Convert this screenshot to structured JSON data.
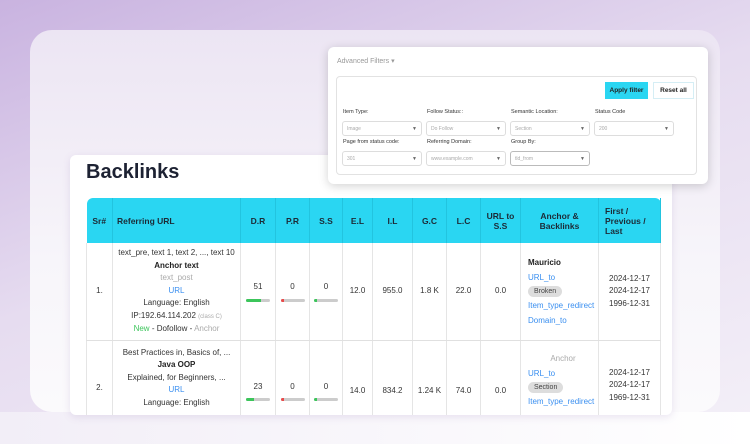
{
  "page": {
    "title": "Backlinks"
  },
  "filters": {
    "title": "Advanced Filters",
    "apply": "Apply filter",
    "reset": "Reset all",
    "fields": [
      {
        "label": "Item Type:",
        "value": "Image"
      },
      {
        "label": "Follow Status::",
        "value": "Do Follow"
      },
      {
        "label": "Semantic Location:",
        "value": "Section"
      },
      {
        "label": "Status Code",
        "value": "200"
      },
      {
        "label": "Page from status code:",
        "value": "301"
      },
      {
        "label": "Referring Domain:",
        "value": "www.example.com"
      },
      {
        "label": "Group By:",
        "value": "tld_from"
      }
    ]
  },
  "table": {
    "headers": [
      "Sr#",
      "Referring URL",
      "D.R",
      "P.R",
      "S.S",
      "E.L",
      "I.L",
      "G.C",
      "L.C",
      "URL to S.S",
      "Anchor & Backlinks",
      "First / Previous / Last"
    ],
    "rows": [
      {
        "sr": "1.",
        "pre": "text_pre, text 1, text 2, ..., text 10",
        "anchor": "Anchor text",
        "post": "text_post",
        "url": "URL",
        "lang": "Language: English",
        "ip": "IP:192.64.114.202",
        "ipclass": "(class C)",
        "tag_new": "New",
        "tag_follow": "Dofollow",
        "tag_anchor": "Anchor",
        "dr": "51",
        "dr_pct": 51,
        "pr": "0",
        "ss": "0",
        "el": "12.0",
        "il": "955.0",
        "gc": "1.8 K",
        "lc": "22.0",
        "urlss": "0.0",
        "a_name": "Mauricio",
        "a_url": "URL_to",
        "a_badge": "Broken",
        "a_type": "Item_type_redirect",
        "a_domain": "Domain_to",
        "first": "2024-12-17",
        "prev": "2024-12-17",
        "last": "1996-12-31"
      },
      {
        "sr": "2.",
        "pre": "Best Practices in, Basics of, ...",
        "anchor": "Java OOP",
        "post": "Explained, for Beginners, ...",
        "url": "URL",
        "lang": "Language: English",
        "dr": "23",
        "dr_pct": 23,
        "pr": "0",
        "ss": "0",
        "el": "14.0",
        "il": "834.2",
        "gc": "1.24 K",
        "lc": "74.0",
        "urlss": "0.0",
        "a_name": "Anchor",
        "a_url": "URL_to",
        "a_badge": "Section",
        "a_type": "Item_type_redirect",
        "first": "2024-12-17",
        "prev": "2024-12-17",
        "last": "1969-12-31"
      }
    ]
  },
  "colors": {
    "accent": "#2ad6f2",
    "good": "#3cc55b",
    "bad": "#e84a4a",
    "link": "#3a8ff0"
  }
}
